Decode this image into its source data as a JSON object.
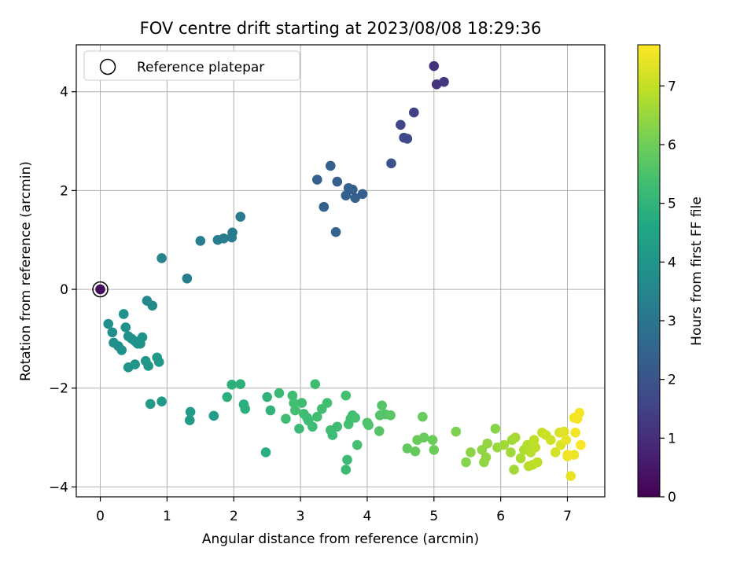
{
  "chart_data": {
    "type": "scatter",
    "title": "FOV centre drift starting at 2023/08/08 18:29:36",
    "xlabel": "Angular distance from reference (arcmin)",
    "ylabel": "Rotation from reference (arcmin)",
    "xlim": [
      -0.36,
      7.56
    ],
    "ylim": [
      -4.2,
      4.95
    ],
    "xticks": [
      0,
      1,
      2,
      3,
      4,
      5,
      6,
      7
    ],
    "yticks": [
      -4,
      -2,
      0,
      2,
      4
    ],
    "grid": true,
    "legend": {
      "position": "top-left",
      "entries": [
        "Reference platepar"
      ]
    },
    "reference_point": {
      "x": 0,
      "y": 0
    },
    "colorbar": {
      "label": "Hours from first FF file",
      "range": [
        0,
        7.7
      ],
      "ticks": [
        0,
        1,
        2,
        3,
        4,
        5,
        6,
        7
      ],
      "colormap": "viridis"
    },
    "series": [
      {
        "x": [
          0.0,
          5.0,
          5.04,
          5.15,
          4.7,
          4.5,
          4.55,
          4.6,
          4.36,
          3.45,
          3.25,
          3.55,
          3.72,
          3.78,
          3.68,
          3.82,
          3.93,
          3.35,
          3.53,
          2.1,
          1.98,
          1.97,
          1.85,
          1.76,
          1.5,
          1.3,
          0.92,
          0.7,
          0.78,
          0.12,
          0.18,
          0.2,
          0.27,
          0.32,
          0.35,
          0.38,
          0.42,
          0.47,
          0.52,
          0.56,
          0.6,
          0.63,
          0.42,
          0.52,
          0.68,
          0.72,
          0.85,
          0.88,
          0.75,
          0.92,
          1.35,
          1.34,
          1.7,
          1.9,
          1.97,
          2.1,
          2.15,
          2.17,
          2.5,
          2.55,
          2.48,
          2.68,
          2.78,
          2.88,
          2.9,
          2.92,
          2.98,
          3.02,
          3.05,
          3.1,
          3.12,
          3.18,
          3.22,
          3.25,
          3.32,
          3.4,
          3.45,
          3.48,
          3.55,
          3.68,
          3.72,
          3.75,
          3.78,
          3.82,
          3.85,
          3.7,
          3.68,
          4.0,
          4.02,
          4.18,
          4.22,
          4.27,
          4.35,
          4.19,
          4.6,
          4.72,
          4.75,
          4.85,
          4.83,
          4.98,
          5.0,
          5.33,
          5.48,
          5.55,
          5.75,
          5.72,
          5.8,
          5.78,
          5.92,
          5.95,
          6.05,
          6.15,
          6.17,
          6.22,
          6.3,
          6.35,
          6.4,
          6.45,
          6.48,
          6.5,
          6.52,
          6.55,
          6.2,
          6.42,
          6.62,
          6.68,
          6.75,
          6.82,
          6.88,
          6.9,
          6.95,
          7.0,
          7.05,
          7.1,
          7.12,
          7.15,
          7.18,
          7.2,
          7.1,
          7.0,
          6.98
        ],
        "y": [
          0.0,
          4.52,
          4.15,
          4.2,
          3.58,
          3.33,
          3.07,
          3.05,
          2.55,
          2.5,
          2.22,
          2.18,
          2.05,
          2.02,
          1.9,
          1.85,
          1.93,
          1.67,
          1.16,
          1.47,
          1.15,
          1.05,
          1.03,
          1.0,
          0.98,
          0.22,
          0.63,
          -0.23,
          -0.33,
          -0.7,
          -0.87,
          -1.08,
          -1.15,
          -1.23,
          -0.5,
          -0.77,
          -0.95,
          -1.0,
          -1.05,
          -1.1,
          -1.1,
          -0.97,
          -1.58,
          -1.52,
          -1.45,
          -1.55,
          -1.38,
          -1.47,
          -2.32,
          -2.27,
          -2.48,
          -2.65,
          -2.56,
          -2.18,
          -1.93,
          -1.92,
          -2.33,
          -2.42,
          -2.18,
          -2.45,
          -3.3,
          -2.1,
          -2.62,
          -2.15,
          -2.3,
          -2.45,
          -2.82,
          -2.3,
          -2.52,
          -2.6,
          -2.66,
          -2.78,
          -1.92,
          -2.58,
          -2.42,
          -2.3,
          -2.85,
          -2.95,
          -2.78,
          -2.15,
          -2.73,
          -2.62,
          -2.55,
          -2.6,
          -3.15,
          -3.45,
          -3.65,
          -2.7,
          -2.75,
          -2.87,
          -2.35,
          -2.53,
          -2.55,
          -2.55,
          -3.22,
          -3.28,
          -3.05,
          -3.0,
          -2.58,
          -3.05,
          -3.25,
          -2.88,
          -3.5,
          -3.3,
          -3.5,
          -3.25,
          -3.12,
          -3.4,
          -2.82,
          -3.2,
          -3.15,
          -3.3,
          -3.05,
          -3.0,
          -3.42,
          -3.25,
          -3.15,
          -3.3,
          -3.55,
          -3.05,
          -3.2,
          -3.5,
          -3.65,
          -3.58,
          -2.9,
          -2.95,
          -3.05,
          -3.3,
          -2.9,
          -3.15,
          -2.88,
          -3.38,
          -3.78,
          -2.6,
          -2.9,
          -2.62,
          -2.5,
          -3.15,
          -3.35,
          -3.35,
          -3.05
        ],
        "color_values": [
          0.2,
          1.1,
          1.15,
          1.2,
          1.5,
          1.6,
          1.65,
          1.65,
          1.95,
          2.3,
          2.35,
          2.3,
          2.3,
          2.3,
          2.3,
          2.32,
          2.32,
          2.4,
          2.45,
          3.1,
          3.15,
          3.2,
          3.2,
          3.2,
          3.25,
          3.3,
          3.45,
          3.6,
          3.6,
          3.8,
          3.8,
          3.82,
          3.82,
          3.85,
          3.85,
          3.85,
          3.88,
          3.88,
          3.9,
          3.9,
          3.9,
          3.9,
          4.0,
          4.0,
          4.05,
          4.05,
          4.1,
          4.1,
          4.15,
          4.15,
          4.2,
          4.2,
          4.25,
          4.9,
          4.9,
          4.9,
          4.85,
          4.85,
          4.95,
          4.95,
          4.85,
          5.2,
          5.3,
          5.3,
          5.35,
          5.35,
          5.2,
          5.3,
          5.3,
          5.25,
          5.25,
          5.25,
          5.3,
          5.35,
          5.35,
          5.35,
          5.35,
          5.25,
          5.3,
          5.4,
          5.4,
          5.35,
          5.35,
          5.4,
          5.4,
          5.2,
          5.2,
          5.55,
          5.55,
          5.6,
          5.6,
          5.65,
          5.7,
          5.6,
          5.8,
          5.85,
          5.9,
          5.9,
          5.9,
          5.95,
          5.95,
          6.2,
          6.3,
          6.35,
          6.4,
          6.4,
          6.45,
          6.45,
          6.3,
          6.5,
          6.6,
          6.6,
          6.6,
          6.65,
          6.7,
          6.75,
          6.8,
          6.85,
          6.9,
          6.95,
          6.95,
          6.95,
          6.6,
          6.9,
          7.05,
          7.1,
          7.15,
          7.2,
          7.25,
          7.3,
          7.35,
          7.5,
          7.45,
          7.55,
          7.55,
          7.6,
          7.6,
          7.65,
          7.5,
          7.55,
          7.45
        ]
      }
    ]
  }
}
